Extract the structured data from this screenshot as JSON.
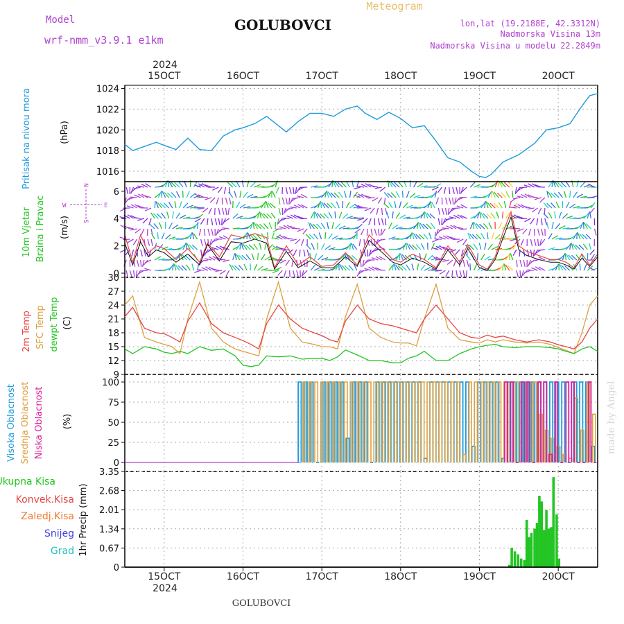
{
  "header": {
    "model_label": "Model",
    "model_name": "wrf-nmm_v3.9.1 e1km",
    "title": "GOLUBOVCI",
    "meteogram": "Meteogram",
    "lonlat": "lon,lat (19.2188E, 42.3312N)",
    "height": "Nadmorska Visina 13m",
    "model_height": "Nadmorska Visina u modelu 22.2849m",
    "footer_title": "GOLUBOVCI",
    "watermark": "made by Angel"
  },
  "x_axis": {
    "year": "2024",
    "ticks": [
      "15OCT",
      "16OCT",
      "17OCT",
      "18OCT",
      "19OCT",
      "20OCT"
    ],
    "tick_days": [
      15,
      16,
      17,
      18,
      19,
      20
    ],
    "range_days": [
      14.5,
      20.5
    ]
  },
  "colors": {
    "pressure": "#1e9bdc",
    "temp2m": "#e84545",
    "sfc_temp": "#dca040",
    "dewpt": "#22c522",
    "cloud_high": "#1e9bdc",
    "cloud_mid": "#dca040",
    "cloud_low": "#dc1e96",
    "precip_total": "#22c522",
    "precip_conv": "#e84545",
    "precip_frozen": "#f07830",
    "snow": "#4040e0",
    "hail": "#20c0c0",
    "wind_label": "#22c522",
    "wind_dir_label": "#b040d0"
  },
  "panels": {
    "pressure": {
      "labels": [
        "Pritisak na nivou mora"
      ],
      "unit": "(hPa)",
      "yticks": [
        "1016",
        "1018",
        "1020",
        "1022",
        "1024"
      ]
    },
    "wind": {
      "labels": [
        "10m Vjetar",
        "Brzina i Pravac"
      ],
      "unit": "(m/s)",
      "yticks": [
        "0",
        "2",
        "4",
        "6"
      ],
      "compass_n": "N",
      "compass_s": "S",
      "compass_w": "W",
      "compass_e": "E"
    },
    "temp": {
      "labels": [
        "2m Temp",
        "SFC Temp",
        "dewpt Temp"
      ],
      "unit": "(C)",
      "yticks": [
        "9",
        "12",
        "15",
        "18",
        "21",
        "24",
        "27",
        "30"
      ]
    },
    "cloud": {
      "labels": [
        "Visoka Oblacnost",
        "Srednja Oblacnost",
        "Niska Oblacnost"
      ],
      "unit": "(%)",
      "yticks": [
        "0",
        "25",
        "50",
        "75",
        "100"
      ]
    },
    "precip": {
      "legend": [
        "Ukupna Kisa",
        "Konvek.Kisa",
        "Zaledj.Kisa",
        "Snijeg",
        "Grad"
      ],
      "unit": "1hr Precip (mm)",
      "yticks": [
        "0",
        "0.67",
        "1.34",
        "2.01",
        "2.68",
        "3.35"
      ]
    }
  },
  "chart_data": [
    {
      "type": "line",
      "title": "",
      "ylabel": "Pritisak na nivou mora (hPa)",
      "ylim": [
        1015,
        1024.3
      ],
      "series": [
        {
          "name": "Pritisak na nivou mora",
          "x": [
            14.5,
            14.6,
            14.75,
            14.9,
            15.0,
            15.15,
            15.3,
            15.45,
            15.6,
            15.75,
            15.9,
            16.0,
            16.15,
            16.3,
            16.45,
            16.55,
            16.7,
            16.85,
            17.0,
            17.15,
            17.3,
            17.45,
            17.55,
            17.7,
            17.85,
            18.0,
            18.15,
            18.3,
            18.45,
            18.6,
            18.75,
            18.9,
            19.0,
            19.08,
            19.15,
            19.3,
            19.5,
            19.7,
            19.85,
            20.0,
            20.15,
            20.3,
            20.4,
            20.5
          ],
          "values": [
            1018.6,
            1018.0,
            1018.4,
            1018.8,
            1018.5,
            1018.1,
            1019.2,
            1018.1,
            1018.0,
            1019.4,
            1020.0,
            1020.2,
            1020.6,
            1021.3,
            1020.4,
            1019.8,
            1020.8,
            1021.6,
            1021.6,
            1021.3,
            1022.0,
            1022.3,
            1021.6,
            1021.0,
            1021.7,
            1021.1,
            1020.2,
            1020.4,
            1018.9,
            1017.3,
            1016.9,
            1016.0,
            1015.5,
            1015.4,
            1015.7,
            1016.9,
            1017.6,
            1018.7,
            1020.0,
            1020.2,
            1020.6,
            1022.3,
            1023.3,
            1023.5
          ]
        }
      ]
    },
    {
      "type": "line",
      "title": "",
      "ylabel": "10m Vjetar Brzina i Pravac (m/s)",
      "ylim": [
        0,
        6.6
      ],
      "series": [
        {
          "name": "",
          "x": [
            14.5,
            14.6,
            14.7,
            14.8,
            14.9,
            15.0,
            15.15,
            15.3,
            15.45,
            15.55,
            15.7,
            15.85,
            16.0,
            16.15,
            16.3,
            16.4,
            16.55,
            16.7,
            16.85,
            17.0,
            17.15,
            17.3,
            17.45,
            17.6,
            17.75,
            17.9,
            18.0,
            18.15,
            18.3,
            18.45,
            18.6,
            18.75,
            18.85,
            19.0,
            19.1,
            19.2,
            19.3,
            19.4,
            19.5,
            19.6,
            19.75,
            19.9,
            20.0,
            20.1,
            20.2,
            20.3,
            20.4,
            20.5
          ],
          "values": [
            2.8,
            0.8,
            2.8,
            1.5,
            2.0,
            1.8,
            1.0,
            1.8,
            0.8,
            2.2,
            1.2,
            2.8,
            2.6,
            2.9,
            2.6,
            0.4,
            2.0,
            0.6,
            1.2,
            0.5,
            0.6,
            1.5,
            0.6,
            2.8,
            1.9,
            1.0,
            0.8,
            1.4,
            1.0,
            0.4,
            2.0,
            0.8,
            2.1,
            0.6,
            0.3,
            1.2,
            3.0,
            4.5,
            2.0,
            1.6,
            1.3,
            1.0,
            1.0,
            0.8,
            0.4,
            1.4,
            0.6,
            1.4
          ]
        },
        {
          "name": "",
          "x": [
            14.5,
            14.6,
            14.7,
            14.8,
            14.9,
            15.0,
            15.15,
            15.3,
            15.45,
            15.55,
            15.7,
            15.85,
            16.0,
            16.15,
            16.3,
            16.4,
            16.55,
            16.7,
            16.85,
            17.0,
            17.15,
            17.3,
            17.45,
            17.6,
            17.75,
            17.9,
            18.0,
            18.15,
            18.3,
            18.45,
            18.6,
            18.75,
            18.85,
            19.0,
            19.1,
            19.2,
            19.3,
            19.4,
            19.5,
            19.6,
            19.75,
            19.9,
            20.0,
            20.1,
            20.2,
            20.3,
            20.4,
            20.5
          ],
          "values": [
            2.2,
            0.6,
            2.3,
            1.2,
            1.7,
            1.5,
            0.8,
            1.4,
            0.6,
            2.1,
            0.9,
            2.3,
            2.2,
            2.5,
            2.2,
            0.3,
            1.6,
            0.4,
            0.9,
            0.4,
            0.4,
            1.2,
            0.5,
            2.4,
            1.6,
            0.8,
            0.6,
            1.1,
            0.8,
            0.3,
            1.7,
            0.6,
            1.8,
            0.4,
            0.2,
            1.0,
            2.6,
            4.1,
            1.7,
            1.3,
            1.0,
            0.8,
            0.8,
            0.6,
            0.3,
            1.1,
            0.5,
            1.2
          ]
        }
      ]
    },
    {
      "type": "line",
      "title": "",
      "ylabel": "(C)",
      "ylim": [
        9,
        30
      ],
      "x": [
        14.5,
        14.6,
        14.75,
        14.9,
        15.0,
        15.1,
        15.2,
        15.3,
        15.45,
        15.6,
        15.75,
        15.9,
        16.0,
        16.1,
        16.2,
        16.3,
        16.45,
        16.6,
        16.75,
        16.9,
        17.0,
        17.1,
        17.2,
        17.3,
        17.45,
        17.6,
        17.75,
        17.9,
        18.0,
        18.1,
        18.2,
        18.3,
        18.45,
        18.6,
        18.75,
        18.9,
        19.0,
        19.1,
        19.2,
        19.3,
        19.45,
        19.6,
        19.75,
        19.9,
        20.0,
        20.1,
        20.2,
        20.3,
        20.4,
        20.5
      ],
      "series": [
        {
          "name": "2m Temp",
          "values": [
            21.5,
            23.5,
            19.0,
            18.0,
            17.8,
            17.0,
            16.0,
            20.5,
            24.5,
            20.0,
            18.0,
            17.0,
            16.3,
            15.5,
            14.5,
            20.0,
            24.0,
            21.0,
            19.0,
            18.0,
            17.4,
            16.5,
            16.0,
            20.5,
            24.0,
            21.0,
            20.0,
            19.5,
            19.0,
            18.5,
            18.0,
            21.0,
            24.0,
            21.0,
            18.0,
            17.0,
            16.8,
            17.5,
            17.0,
            17.3,
            16.5,
            16.0,
            16.5,
            16.0,
            15.4,
            15.0,
            14.5,
            16.0,
            19.0,
            21.0
          ]
        },
        {
          "name": "SFC Temp",
          "values": [
            24.0,
            26.0,
            17.0,
            16.0,
            15.5,
            15.0,
            13.5,
            21.0,
            29.0,
            19.0,
            16.0,
            14.5,
            14.0,
            13.5,
            13.0,
            21.0,
            29.0,
            19.0,
            16.0,
            15.5,
            15.0,
            15.0,
            14.5,
            21.5,
            28.5,
            19.0,
            17.0,
            16.0,
            15.8,
            15.8,
            15.2,
            21.0,
            28.5,
            19.0,
            16.5,
            16.0,
            15.8,
            16.5,
            16.0,
            16.5,
            16.0,
            15.8,
            16.0,
            15.5,
            14.8,
            14.2,
            13.5,
            18.0,
            24.0,
            26.0
          ]
        },
        {
          "name": "dewpt Temp",
          "values": [
            14.5,
            13.5,
            15.0,
            14.5,
            13.8,
            13.5,
            14.0,
            13.5,
            15.0,
            14.2,
            14.5,
            13.0,
            11.0,
            10.7,
            11.0,
            13.0,
            12.8,
            13.0,
            12.3,
            12.5,
            12.5,
            12.0,
            12.8,
            14.3,
            13.2,
            12.0,
            12.0,
            11.5,
            11.5,
            12.5,
            13.0,
            14.0,
            12.0,
            12.0,
            13.5,
            14.5,
            15.0,
            15.3,
            15.5,
            15.0,
            14.8,
            15.0,
            15.0,
            14.8,
            14.5,
            14.0,
            13.5,
            14.5,
            15.0,
            14.0
          ]
        }
      ]
    },
    {
      "type": "bar",
      "title": "",
      "ylabel": "(%)",
      "ylim": [
        0,
        100
      ],
      "note_x_range": [
        14.5,
        20.5
      ],
      "series": [
        {
          "name": "Visoka Oblacnost",
          "x_start": 16.7,
          "x_end": 20.5,
          "values": [
            100,
            100,
            100,
            0,
            100,
            100,
            100,
            100,
            30,
            100,
            100,
            100,
            0,
            100,
            100,
            100,
            100,
            100,
            100,
            100,
            100,
            5,
            100,
            100,
            100,
            100,
            100,
            100,
            100,
            20,
            100,
            100,
            100,
            100,
            5,
            100,
            100,
            100,
            100,
            100,
            100,
            100,
            100,
            100,
            100,
            0,
            100,
            100,
            100,
            20
          ]
        },
        {
          "name": "Srednja Oblacnost",
          "x_start": 16.75,
          "x_end": 20.5,
          "values": [
            100,
            100,
            100,
            100,
            100,
            100,
            100,
            100,
            100,
            100,
            100,
            100,
            100,
            100,
            100,
            100,
            100,
            100,
            100,
            100,
            100,
            100,
            100,
            100,
            100,
            100,
            100,
            10,
            100,
            100,
            100,
            100,
            100,
            100,
            100,
            100,
            100,
            100,
            100,
            100,
            60,
            40,
            30,
            20,
            10,
            5,
            80,
            40,
            100,
            60
          ]
        },
        {
          "name": "Niska Oblacnost",
          "x_start": 19.3,
          "x_end": 20.5,
          "values": [
            100,
            100,
            0,
            100,
            100,
            0,
            100,
            100,
            10,
            100,
            0,
            100,
            100,
            0,
            0,
            100,
            0
          ]
        }
      ]
    },
    {
      "type": "bar",
      "title": "",
      "ylabel": "1hr Precip (mm)",
      "ylim": [
        0,
        3.35
      ],
      "series": [
        {
          "name": "Ukupna Kisa",
          "x": [
            19.38,
            19.41,
            19.45,
            19.49,
            19.53,
            19.57,
            19.6,
            19.63,
            19.66,
            19.7,
            19.73,
            19.76,
            19.79,
            19.82,
            19.85,
            19.88,
            19.91,
            19.94,
            19.98,
            20.01
          ],
          "values": [
            0.08,
            0.68,
            0.55,
            0.45,
            0.3,
            0.25,
            1.65,
            1.05,
            1.2,
            1.35,
            1.55,
            2.5,
            2.3,
            1.3,
            2.0,
            1.35,
            1.4,
            3.15,
            1.85,
            0.3
          ]
        }
      ]
    }
  ]
}
